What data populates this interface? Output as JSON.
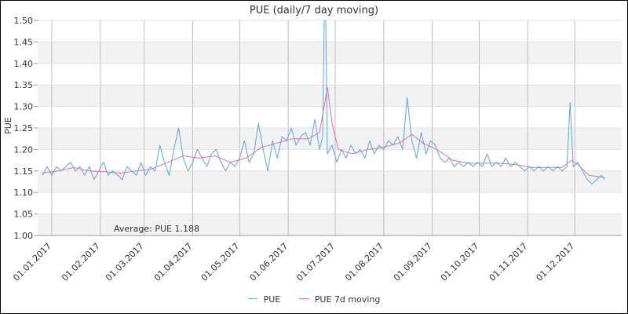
{
  "chart_data": {
    "type": "line",
    "title": "PUE (daily/7 day moving)",
    "xlabel": "",
    "ylabel": "PUE",
    "ylim": [
      1.0,
      1.5
    ],
    "yticks": [
      "1.00",
      "1.05",
      "1.10",
      "1.15",
      "1.20",
      "1.25",
      "1.30",
      "1.35",
      "1.40",
      "1.45",
      "1.50"
    ],
    "xlim": [
      "2016-12-23",
      "2017-12-31"
    ],
    "xticks": [
      {
        "date": "2017-01-01",
        "label": "01.01.2017"
      },
      {
        "date": "2017-02-01",
        "label": "01.02.2017"
      },
      {
        "date": "2017-03-01",
        "label": "01.03.2017"
      },
      {
        "date": "2017-04-01",
        "label": "01.04.2017"
      },
      {
        "date": "2017-05-01",
        "label": "01.05.2017"
      },
      {
        "date": "2017-06-01",
        "label": "01.06.2017"
      },
      {
        "date": "2017-07-01",
        "label": "01.07.2017"
      },
      {
        "date": "2017-08-01",
        "label": "01.08.2017"
      },
      {
        "date": "2017-09-01",
        "label": "01.09.2017"
      },
      {
        "date": "2017-10-01",
        "label": "01.10.2017"
      },
      {
        "date": "2017-11-01",
        "label": "01.11.2017"
      },
      {
        "date": "2017-12-01",
        "label": "01.12.2017"
      }
    ],
    "grid": true,
    "legend_position": "bottom",
    "annotation": "Average: PUE 1.188",
    "series": [
      {
        "name": "PUE",
        "color": "#5aa7e6",
        "points": [
          [
            "2016-12-26",
            1.14
          ],
          [
            "2016-12-29",
            1.16
          ],
          [
            "2017-01-01",
            1.14
          ],
          [
            "2017-01-04",
            1.16
          ],
          [
            "2017-01-07",
            1.15
          ],
          [
            "2017-01-10",
            1.16
          ],
          [
            "2017-01-13",
            1.17
          ],
          [
            "2017-01-16",
            1.15
          ],
          [
            "2017-01-19",
            1.16
          ],
          [
            "2017-01-22",
            1.14
          ],
          [
            "2017-01-25",
            1.16
          ],
          [
            "2017-01-28",
            1.13
          ],
          [
            "2017-01-31",
            1.15
          ],
          [
            "2017-02-03",
            1.17
          ],
          [
            "2017-02-06",
            1.14
          ],
          [
            "2017-02-09",
            1.15
          ],
          [
            "2017-02-12",
            1.14
          ],
          [
            "2017-02-15",
            1.13
          ],
          [
            "2017-02-18",
            1.16
          ],
          [
            "2017-02-21",
            1.15
          ],
          [
            "2017-02-24",
            1.14
          ],
          [
            "2017-02-27",
            1.17
          ],
          [
            "2017-03-02",
            1.14
          ],
          [
            "2017-03-05",
            1.16
          ],
          [
            "2017-03-08",
            1.15
          ],
          [
            "2017-03-11",
            1.21
          ],
          [
            "2017-03-14",
            1.17
          ],
          [
            "2017-03-17",
            1.14
          ],
          [
            "2017-03-20",
            1.2
          ],
          [
            "2017-03-23",
            1.25
          ],
          [
            "2017-03-26",
            1.18
          ],
          [
            "2017-03-29",
            1.15
          ],
          [
            "2017-04-01",
            1.17
          ],
          [
            "2017-04-04",
            1.2
          ],
          [
            "2017-04-07",
            1.18
          ],
          [
            "2017-04-10",
            1.16
          ],
          [
            "2017-04-13",
            1.19
          ],
          [
            "2017-04-16",
            1.2
          ],
          [
            "2017-04-19",
            1.17
          ],
          [
            "2017-04-22",
            1.15
          ],
          [
            "2017-04-25",
            1.17
          ],
          [
            "2017-04-28",
            1.16
          ],
          [
            "2017-05-01",
            1.18
          ],
          [
            "2017-05-04",
            1.22
          ],
          [
            "2017-05-07",
            1.17
          ],
          [
            "2017-05-10",
            1.19
          ],
          [
            "2017-05-13",
            1.26
          ],
          [
            "2017-05-16",
            1.2
          ],
          [
            "2017-05-19",
            1.15
          ],
          [
            "2017-05-22",
            1.22
          ],
          [
            "2017-05-25",
            1.18
          ],
          [
            "2017-05-28",
            1.23
          ],
          [
            "2017-05-31",
            1.22
          ],
          [
            "2017-06-03",
            1.25
          ],
          [
            "2017-06-06",
            1.21
          ],
          [
            "2017-06-09",
            1.23
          ],
          [
            "2017-06-12",
            1.24
          ],
          [
            "2017-06-15",
            1.21
          ],
          [
            "2017-06-18",
            1.27
          ],
          [
            "2017-06-21",
            1.2
          ],
          [
            "2017-06-23",
            1.23
          ],
          [
            "2017-06-24",
            1.5
          ],
          [
            "2017-06-25",
            1.5
          ],
          [
            "2017-06-26",
            1.19
          ],
          [
            "2017-06-29",
            1.21
          ],
          [
            "2017-07-02",
            1.17
          ],
          [
            "2017-07-05",
            1.2
          ],
          [
            "2017-07-08",
            1.18
          ],
          [
            "2017-07-11",
            1.21
          ],
          [
            "2017-07-14",
            1.19
          ],
          [
            "2017-07-17",
            1.2
          ],
          [
            "2017-07-20",
            1.18
          ],
          [
            "2017-07-23",
            1.22
          ],
          [
            "2017-07-26",
            1.19
          ],
          [
            "2017-07-29",
            1.21
          ],
          [
            "2017-08-01",
            1.2
          ],
          [
            "2017-08-04",
            1.22
          ],
          [
            "2017-08-07",
            1.21
          ],
          [
            "2017-08-10",
            1.23
          ],
          [
            "2017-08-13",
            1.2
          ],
          [
            "2017-08-16",
            1.32
          ],
          [
            "2017-08-19",
            1.22
          ],
          [
            "2017-08-22",
            1.18
          ],
          [
            "2017-08-25",
            1.24
          ],
          [
            "2017-08-28",
            1.19
          ],
          [
            "2017-08-31",
            1.22
          ],
          [
            "2017-09-03",
            1.21
          ],
          [
            "2017-09-06",
            1.18
          ],
          [
            "2017-09-09",
            1.17
          ],
          [
            "2017-09-12",
            1.18
          ],
          [
            "2017-09-15",
            1.16
          ],
          [
            "2017-09-18",
            1.17
          ],
          [
            "2017-09-21",
            1.16
          ],
          [
            "2017-09-24",
            1.17
          ],
          [
            "2017-09-27",
            1.16
          ],
          [
            "2017-09-30",
            1.17
          ],
          [
            "2017-10-03",
            1.16
          ],
          [
            "2017-10-06",
            1.19
          ],
          [
            "2017-10-09",
            1.16
          ],
          [
            "2017-10-12",
            1.17
          ],
          [
            "2017-10-15",
            1.16
          ],
          [
            "2017-10-18",
            1.18
          ],
          [
            "2017-10-21",
            1.16
          ],
          [
            "2017-10-24",
            1.17
          ],
          [
            "2017-10-27",
            1.16
          ],
          [
            "2017-10-30",
            1.15
          ],
          [
            "2017-11-02",
            1.16
          ],
          [
            "2017-11-05",
            1.15
          ],
          [
            "2017-11-08",
            1.16
          ],
          [
            "2017-11-11",
            1.15
          ],
          [
            "2017-11-14",
            1.16
          ],
          [
            "2017-11-17",
            1.15
          ],
          [
            "2017-11-20",
            1.16
          ],
          [
            "2017-11-23",
            1.15
          ],
          [
            "2017-11-26",
            1.16
          ],
          [
            "2017-11-28",
            1.31
          ],
          [
            "2017-11-30",
            1.16
          ],
          [
            "2017-12-03",
            1.17
          ],
          [
            "2017-12-06",
            1.15
          ],
          [
            "2017-12-09",
            1.13
          ],
          [
            "2017-12-12",
            1.12
          ],
          [
            "2017-12-15",
            1.13
          ],
          [
            "2017-12-18",
            1.14
          ],
          [
            "2017-12-20",
            1.13
          ]
        ]
      },
      {
        "name": "PUE 7d moving",
        "color": "#ee6e9c",
        "points": [
          [
            "2016-12-26",
            1.145
          ],
          [
            "2017-01-05",
            1.15
          ],
          [
            "2017-01-15",
            1.158
          ],
          [
            "2017-01-25",
            1.15
          ],
          [
            "2017-02-04",
            1.148
          ],
          [
            "2017-02-14",
            1.145
          ],
          [
            "2017-02-24",
            1.15
          ],
          [
            "2017-03-06",
            1.155
          ],
          [
            "2017-03-16",
            1.17
          ],
          [
            "2017-03-26",
            1.185
          ],
          [
            "2017-04-05",
            1.18
          ],
          [
            "2017-04-15",
            1.185
          ],
          [
            "2017-04-25",
            1.17
          ],
          [
            "2017-05-05",
            1.18
          ],
          [
            "2017-05-15",
            1.205
          ],
          [
            "2017-05-25",
            1.215
          ],
          [
            "2017-06-04",
            1.225
          ],
          [
            "2017-06-14",
            1.225
          ],
          [
            "2017-06-21",
            1.24
          ],
          [
            "2017-06-24",
            1.3
          ],
          [
            "2017-06-26",
            1.345
          ],
          [
            "2017-06-29",
            1.26
          ],
          [
            "2017-07-03",
            1.2
          ],
          [
            "2017-07-12",
            1.19
          ],
          [
            "2017-07-22",
            1.2
          ],
          [
            "2017-08-01",
            1.205
          ],
          [
            "2017-08-11",
            1.215
          ],
          [
            "2017-08-19",
            1.235
          ],
          [
            "2017-08-26",
            1.215
          ],
          [
            "2017-09-04",
            1.2
          ],
          [
            "2017-09-14",
            1.175
          ],
          [
            "2017-09-24",
            1.168
          ],
          [
            "2017-10-04",
            1.168
          ],
          [
            "2017-10-14",
            1.168
          ],
          [
            "2017-10-24",
            1.165
          ],
          [
            "2017-11-03",
            1.158
          ],
          [
            "2017-11-13",
            1.158
          ],
          [
            "2017-11-23",
            1.158
          ],
          [
            "2017-11-29",
            1.175
          ],
          [
            "2017-12-03",
            1.165
          ],
          [
            "2017-12-10",
            1.14
          ],
          [
            "2017-12-20",
            1.135
          ]
        ]
      }
    ]
  }
}
